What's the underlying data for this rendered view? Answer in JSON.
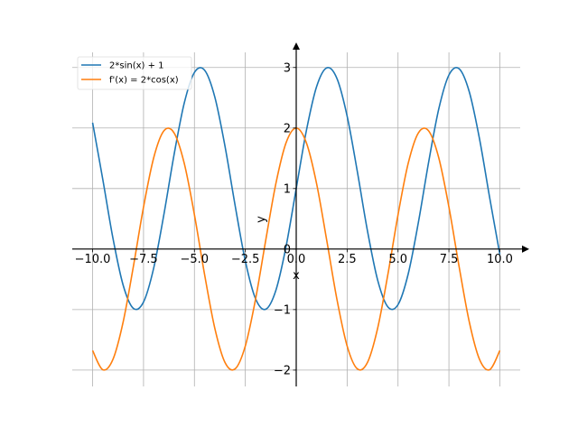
{
  "chart_data": {
    "type": "line",
    "title": "",
    "xlabel": "x",
    "ylabel": "y",
    "xlim": [
      -11,
      11
    ],
    "ylim": [
      -2.33,
      3.25
    ],
    "grid": true,
    "legend_placement": "top-left",
    "x_ticks": [
      "−10.0",
      "−7.5",
      "−5.0",
      "−2.5",
      "0.0",
      "2.5",
      "5.0",
      "7.5",
      "10.0"
    ],
    "x_tick_values": [
      -10,
      -7.5,
      -5,
      -2.5,
      0,
      2.5,
      5,
      7.5,
      10
    ],
    "y_ticks": [
      "−2",
      "−1",
      "0",
      "1",
      "2",
      "3"
    ],
    "y_tick_values": [
      -2,
      -1,
      0,
      1,
      2,
      3
    ],
    "x": [
      -10,
      -9.5,
      -9,
      -8.5,
      -8,
      -7.5,
      -7,
      -6.5,
      -6,
      -5.5,
      -5,
      -4.5,
      -4,
      -3.5,
      -3,
      -2.5,
      -2,
      -1.5,
      -1,
      -0.5,
      0,
      0.5,
      1,
      1.5,
      2,
      2.5,
      3,
      3.5,
      4,
      4.5,
      5,
      5.5,
      6,
      6.5,
      7,
      7.5,
      8,
      8.5,
      9,
      9.5,
      10
    ],
    "series": [
      {
        "name": "2*sin(x) + 1",
        "color": "#1f77b4",
        "values": [
          2.088,
          1.15,
          0.176,
          -0.597,
          -0.979,
          -0.876,
          -0.314,
          0.57,
          1.559,
          2.411,
          2.918,
          2.955,
          2.514,
          1.702,
          0.718,
          -0.197,
          -0.819,
          -0.995,
          -0.683,
          0.041,
          1,
          1.959,
          2.683,
          2.995,
          2.819,
          2.197,
          1.282,
          0.298,
          -0.514,
          -0.955,
          -0.918,
          -0.411,
          0.441,
          1.43,
          2.314,
          2.876,
          2.979,
          2.597,
          1.824,
          0.85,
          -0.088
        ]
      },
      {
        "name": "f'(x) = 2*cos(x)",
        "color": "#ff7f0e",
        "values": [
          -1.678,
          -1.994,
          -1.822,
          -1.204,
          -0.291,
          0.693,
          1.508,
          1.953,
          1.92,
          1.417,
          0.567,
          -0.422,
          -1.307,
          -1.873,
          -1.98,
          -1.602,
          -0.832,
          0.141,
          1.081,
          1.755,
          2,
          1.755,
          1.081,
          0.141,
          -0.832,
          -1.602,
          -1.98,
          -1.873,
          -1.307,
          -0.422,
          0.567,
          1.417,
          1.92,
          1.953,
          1.508,
          0.693,
          -0.291,
          -1.204,
          -1.822,
          -1.994,
          -1.678
        ]
      }
    ]
  }
}
